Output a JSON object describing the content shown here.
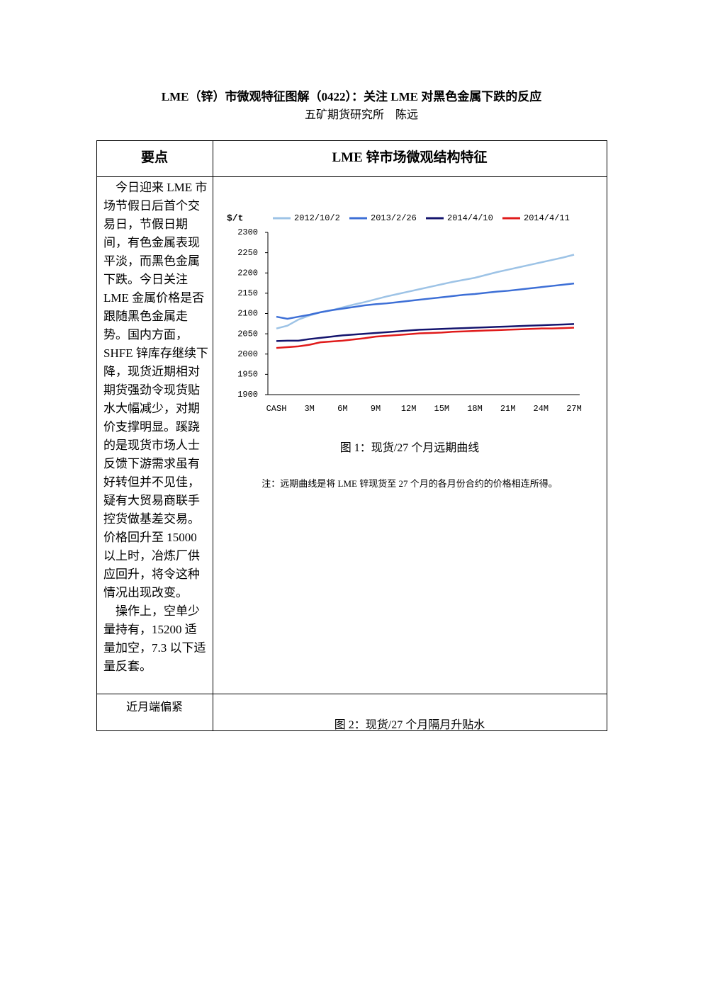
{
  "header": {
    "title": "LME（锌）市微观特征图解（0422）：关注 LME 对黑色金属下跌的反应",
    "subtitle": "五矿期货研究所　陈远"
  },
  "table": {
    "head": [
      "要点",
      "LME 锌市场微观结构特征"
    ],
    "left": [
      "今日迎来 LME 市场节假日后首个交易日，节假日期间，有色金属表现平淡，而黑色金属下跌。今日关注 LME 金属价格是否跟随黑色金属走势。国内方面，SHFE 锌库存继续下降，现货近期相对期货强劲令现货贴水大幅减少，对期价支撑明显。蹊跷的是现货市场人士反馈下游需求虽有好转但并不见佳，疑有大贸易商联手控货做基差交易。价格回升至 15000 以上时，冶炼厂供应回升，将令这种情况出现改变。",
      "操作上，空单少量持有，15200 适量加空，7.3 以下适量反套。"
    ],
    "figure1_caption": "图 1：现货/27 个月远期曲线",
    "note": "注：远期曲线是将 LME 锌现货至 27 个月的各月份合约的价格相连所得。",
    "last_row": [
      "近月端偏紧",
      "图 2：现货/27 个月隔月升贴水"
    ]
  },
  "chart_data": {
    "type": "line",
    "y_label": "$/t",
    "categories": [
      "CASH",
      null,
      null,
      "3M",
      null,
      null,
      "6M",
      null,
      null,
      "9M",
      null,
      null,
      "12M",
      null,
      null,
      "15M",
      null,
      null,
      "18M",
      null,
      null,
      "21M",
      null,
      null,
      "24M",
      null,
      null,
      "27M"
    ],
    "series": [
      {
        "name": "2012/10/2",
        "color": "#9dc3e6",
        "values": [
          2063,
          2070,
          2085,
          2095,
          2103,
          2108,
          2115,
          2122,
          2128,
          2135,
          2142,
          2148,
          2154,
          2160,
          2166,
          2172,
          2178,
          2183,
          2188,
          2195,
          2202,
          2208,
          2214,
          2220,
          2226,
          2232,
          2238,
          2245
        ]
      },
      {
        "name": "2013/2/26",
        "color": "#3d6fd6",
        "values": [
          2092,
          2087,
          2092,
          2097,
          2103,
          2108,
          2112,
          2116,
          2120,
          2123,
          2125,
          2128,
          2131,
          2134,
          2137,
          2140,
          2143,
          2146,
          2148,
          2151,
          2154,
          2156,
          2159,
          2162,
          2165,
          2168,
          2171,
          2174
        ]
      },
      {
        "name": "2014/4/10",
        "color": "#14146e",
        "values": [
          2032,
          2033,
          2033,
          2037,
          2040,
          2043,
          2046,
          2048,
          2050,
          2052,
          2054,
          2056,
          2058,
          2060,
          2061,
          2062,
          2063,
          2064,
          2065,
          2066,
          2067,
          2068,
          2069,
          2070,
          2071,
          2072,
          2073,
          2074
        ]
      },
      {
        "name": "2014/4/11",
        "color": "#e01b1b",
        "values": [
          2015,
          2017,
          2019,
          2023,
          2029,
          2031,
          2033,
          2036,
          2039,
          2043,
          2045,
          2047,
          2049,
          2051,
          2052,
          2053,
          2055,
          2056,
          2057,
          2058,
          2059,
          2060,
          2061,
          2062,
          2063,
          2063,
          2064,
          2065
        ]
      }
    ],
    "ylim": [
      1900,
      2300
    ],
    "yticks": [
      1900,
      1950,
      2000,
      2050,
      2100,
      2150,
      2200,
      2250,
      2300
    ]
  }
}
